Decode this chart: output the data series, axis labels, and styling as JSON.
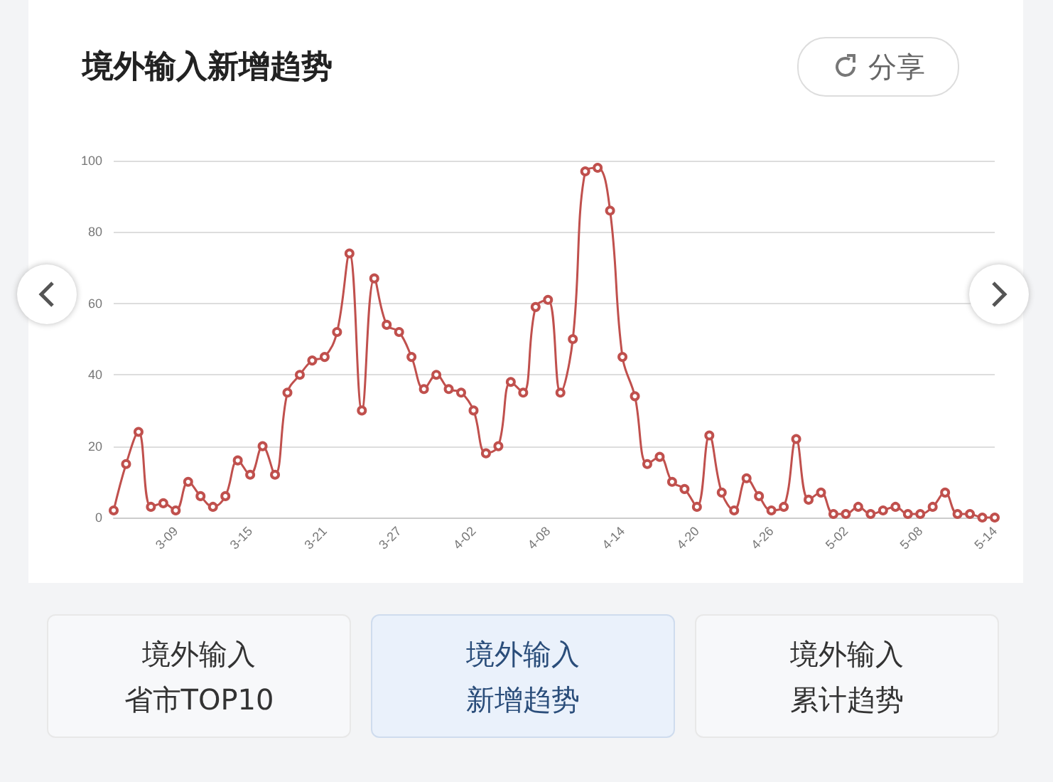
{
  "chart_data": {
    "type": "line",
    "title": "境外输入新增趋势",
    "categories": [
      null,
      null,
      null,
      null,
      null,
      "3-09",
      null,
      null,
      null,
      null,
      null,
      "3-15",
      null,
      null,
      null,
      null,
      null,
      "3-21",
      null,
      null,
      null,
      null,
      null,
      "3-27",
      null,
      null,
      null,
      null,
      null,
      "4-02",
      null,
      null,
      null,
      null,
      null,
      "4-08",
      null,
      null,
      null,
      null,
      null,
      "4-14",
      null,
      null,
      null,
      null,
      null,
      "4-20",
      null,
      null,
      null,
      null,
      null,
      "4-26",
      null,
      null,
      null,
      null,
      null,
      "5-02",
      null,
      null,
      null,
      null,
      null,
      "5-08",
      null,
      null,
      null,
      null,
      null,
      "5-14"
    ],
    "series": [
      {
        "color": "#c0504d",
        "values": [
          2,
          15,
          24,
          3,
          4,
          2,
          10,
          6,
          3,
          6,
          16,
          12,
          20,
          12,
          35,
          40,
          44,
          45,
          52,
          74,
          30,
          67,
          54,
          52,
          45,
          36,
          40,
          36,
          35,
          30,
          18,
          20,
          38,
          35,
          59,
          61,
          35,
          50,
          97,
          98,
          86,
          45,
          34,
          15,
          17,
          10,
          8,
          3,
          23,
          7,
          2,
          11,
          6,
          2,
          3,
          22,
          5,
          7,
          1,
          1,
          3,
          1,
          2,
          3,
          1,
          1,
          3,
          7,
          1,
          1,
          0,
          0
        ]
      }
    ],
    "ylim": [
      0,
      100
    ],
    "yticks": [
      0,
      20,
      40,
      60,
      80,
      100
    ],
    "grid": "y",
    "marker": "circle",
    "line_style": "solid",
    "annotations": [
      "分享",
      "境外输入",
      "省市TOP10",
      "境外输入",
      "新增趋势",
      "境外输入",
      "累计趋势"
    ]
  }
}
